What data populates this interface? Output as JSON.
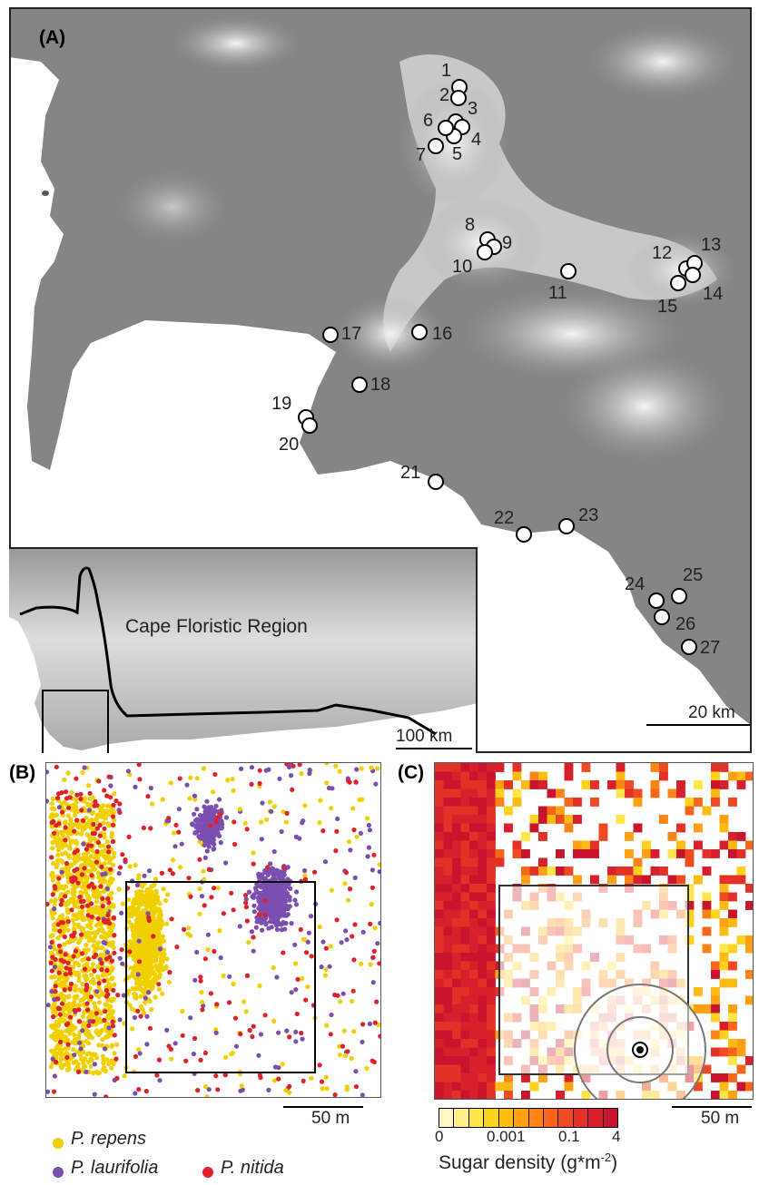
{
  "panels": {
    "a": {
      "label": "(A)",
      "scale_label": "20 km",
      "sites": [
        {
          "id": "1",
          "label": "1"
        },
        {
          "id": "2",
          "label": "2"
        },
        {
          "id": "3",
          "label": "3"
        },
        {
          "id": "4",
          "label": "4"
        },
        {
          "id": "5",
          "label": "5"
        },
        {
          "id": "6",
          "label": "6"
        },
        {
          "id": "7",
          "label": "7"
        },
        {
          "id": "8",
          "label": "8"
        },
        {
          "id": "9",
          "label": "9"
        },
        {
          "id": "10",
          "label": "10"
        },
        {
          "id": "11",
          "label": "11"
        },
        {
          "id": "12",
          "label": "12"
        },
        {
          "id": "13",
          "label": "13"
        },
        {
          "id": "14",
          "label": "14"
        },
        {
          "id": "15",
          "label": "15"
        },
        {
          "id": "16",
          "label": "16"
        },
        {
          "id": "17",
          "label": "17"
        },
        {
          "id": "18",
          "label": "18"
        },
        {
          "id": "19",
          "label": "19"
        },
        {
          "id": "20",
          "label": "20"
        },
        {
          "id": "21",
          "label": "21"
        },
        {
          "id": "22",
          "label": "22"
        },
        {
          "id": "23",
          "label": "23"
        },
        {
          "id": "24",
          "label": "24"
        },
        {
          "id": "25",
          "label": "25"
        },
        {
          "id": "26",
          "label": "26"
        },
        {
          "id": "27",
          "label": "27"
        }
      ],
      "inset": {
        "region_label": "Cape Floristic Region",
        "scale_label": "100 km"
      }
    },
    "b": {
      "label": "(B)",
      "scale_label": "50 m",
      "legend": [
        {
          "name": "P. repens",
          "color": "#f0d000"
        },
        {
          "name": "P. laurifolia",
          "color": "#7a4fb0"
        },
        {
          "name": "P. nitida",
          "color": "#e0202a"
        }
      ]
    },
    "c": {
      "label": "(C)",
      "scale_label": "50 m",
      "colorbar": {
        "title_prefix": "Sugar density (g*m",
        "title_sup": "-2",
        "title_suffix": ")",
        "ticks": [
          "0",
          "0.001",
          "0.1",
          "4"
        ],
        "colors": [
          "#fff6c4",
          "#fff08a",
          "#ffe64a",
          "#ffd21e",
          "#ffbb14",
          "#ffa015",
          "#ff8418",
          "#f8661c",
          "#ef4a22",
          "#e43128",
          "#d81f2c",
          "#c8142c"
        ]
      }
    }
  }
}
